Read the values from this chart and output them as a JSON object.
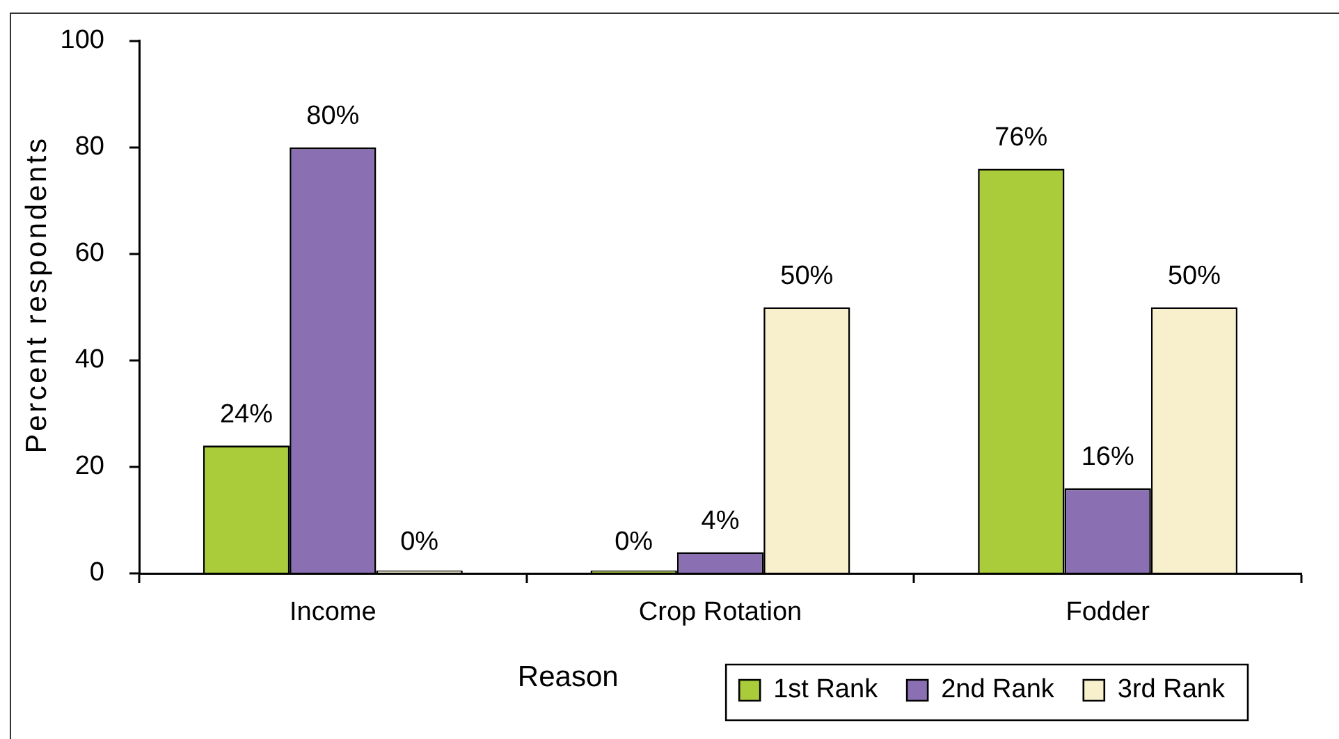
{
  "chart_data": {
    "type": "bar",
    "xlabel": "Reason",
    "ylabel": "Percent respondents",
    "categories": [
      "Income",
      "Crop Rotation",
      "Fodder"
    ],
    "series": [
      {
        "name": "1st Rank",
        "color": "#aacb3a",
        "values": [
          24,
          0,
          76
        ],
        "value_labels": [
          "24%",
          "0%",
          "76%"
        ]
      },
      {
        "name": "2nd Rank",
        "color": "#8a70b2",
        "values": [
          80,
          4,
          16
        ],
        "value_labels": [
          "80%",
          "4%",
          "16%"
        ]
      },
      {
        "name": "3rd Rank",
        "color": "#f8f0cc",
        "values": [
          0,
          50,
          50
        ],
        "value_labels": [
          "0%",
          "50%",
          "50%"
        ]
      }
    ],
    "ylim": [
      0,
      100
    ],
    "yticks": [
      0,
      20,
      40,
      60,
      80,
      100
    ],
    "grid": false,
    "legend": "bottom right"
  }
}
